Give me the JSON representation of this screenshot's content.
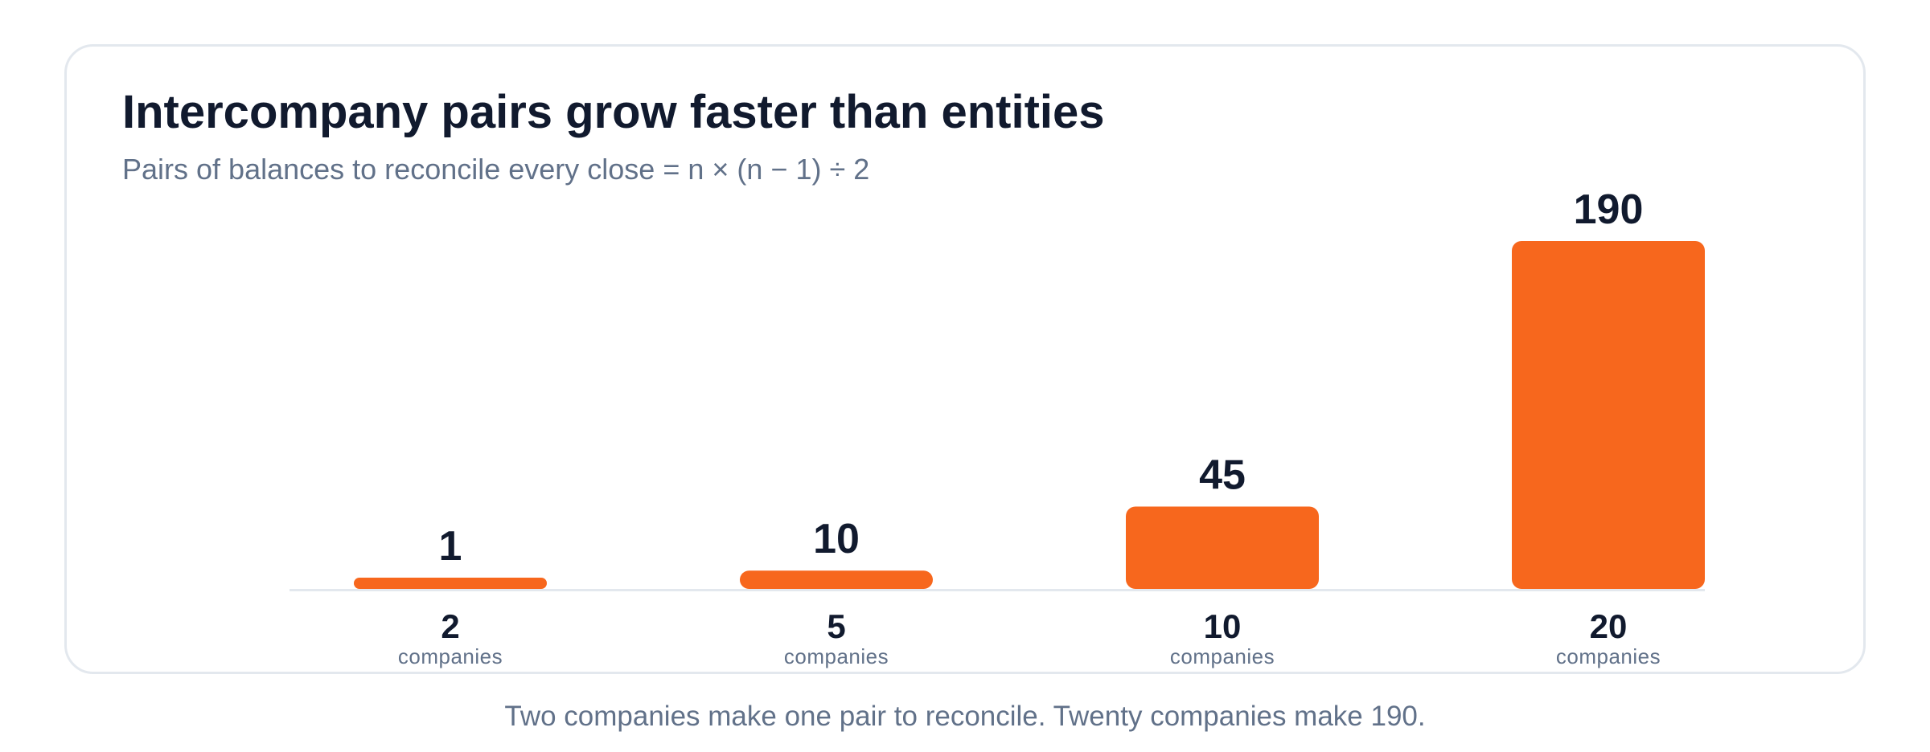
{
  "title": "Intercompany pairs grow faster than entities",
  "subtitle": "Pairs of balances to reconcile every close = n × (n − 1) ÷ 2",
  "caption": "Two companies make one pair to reconcile. Twenty companies make 190.",
  "colors": {
    "bar": "#f7671d",
    "baseline": "#e3e8ee",
    "text_dark": "#111a2e",
    "text_muted": "#617189"
  },
  "chart_data": {
    "type": "bar",
    "categories": [
      "2",
      "5",
      "10",
      "20"
    ],
    "category_sublabel": "companies",
    "values": [
      1,
      10,
      45,
      190
    ],
    "ylim": [
      0,
      190
    ],
    "grid": false,
    "legend": "none",
    "xlabel": "",
    "ylabel": ""
  }
}
